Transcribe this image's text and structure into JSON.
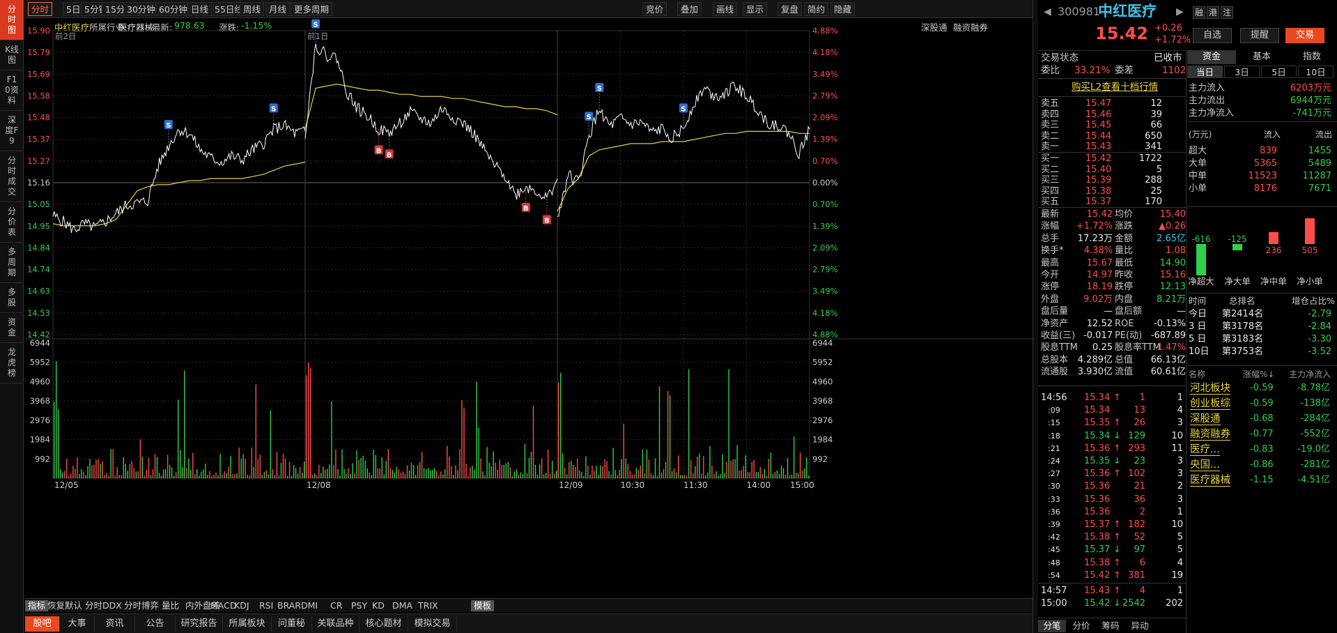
{
  "left_tabs": [
    "分时图",
    "K线图",
    "F10资料",
    "深度F9",
    "分时成交",
    "分价表",
    "多周期",
    "多股",
    "资金",
    "龙虎榜"
  ],
  "period_tabs": [
    "分时",
    "5日",
    "5分钟",
    "15分钟",
    "30分钟",
    "60分钟",
    "日线",
    "55日线",
    "周线",
    "月线",
    "更多周期"
  ],
  "right_tools": [
    "竞价",
    "叠加",
    "画线",
    "显示",
    "复盘",
    "简约",
    "隐藏"
  ],
  "info": {
    "name": "中红医疗",
    "industry_label": "所属行业:",
    "industry": "医疗器械",
    "latest_label": "最新:",
    "latest": "978.63",
    "change_label": "涨跌:",
    "change": "-1.15%",
    "tag1": "深股通",
    "tag2": "融资融券"
  },
  "chart_data": {
    "type": "line",
    "title": "",
    "price_axis": {
      "ticks": [
        "15.90",
        "15.79",
        "15.69",
        "15.58",
        "15.48",
        "15.37",
        "15.27",
        "15.16",
        "15.05",
        "14.95",
        "14.84",
        "14.74",
        "14.63",
        "14.53",
        "14.42"
      ],
      "pct": [
        "4.88%",
        "4.18%",
        "3.49%",
        "2.79%",
        "2.09%",
        "1.39%",
        "0.70%",
        "0.00%",
        "0.70%",
        "1.39%",
        "2.09%",
        "2.79%",
        "3.49%",
        "4.18%",
        "4.88%"
      ],
      "ylim": [
        14.42,
        15.9
      ],
      "prev_close": 15.16
    },
    "volume_axis": {
      "ticks": [
        "6944",
        "5952",
        "4960",
        "3968",
        "2976",
        "1984",
        "992"
      ],
      "ylim": [
        0,
        6944
      ]
    },
    "x_labels": [
      "12/05",
      "12/08",
      "12/09",
      "10:30",
      "11:30",
      "14:00",
      "15:00"
    ],
    "day_labels": [
      "前2日",
      "前1日"
    ],
    "series": [
      {
        "day": "12/05",
        "price": [
          15.0,
          14.97,
          14.93,
          14.96,
          14.94,
          14.97,
          15.01,
          15.05,
          15.06,
          15.07,
          15.24,
          15.34,
          15.42,
          15.4,
          15.32,
          15.28,
          15.26,
          15.29,
          15.27,
          15.32,
          15.35,
          15.42,
          15.44,
          15.4,
          15.41
        ],
        "avg": [
          14.96,
          14.95,
          14.95,
          14.95,
          14.95,
          14.96,
          14.98,
          15.05,
          15.12,
          15.14,
          15.15,
          15.15,
          15.16,
          15.17,
          15.17,
          15.18,
          15.18,
          15.18,
          15.18,
          15.19,
          15.2,
          15.22,
          15.24,
          15.25,
          15.26
        ]
      },
      {
        "day": "12/08",
        "price": [
          15.4,
          15.83,
          15.78,
          15.77,
          15.6,
          15.52,
          15.48,
          15.42,
          15.4,
          15.45,
          15.5,
          15.47,
          15.45,
          15.52,
          15.48,
          15.45,
          15.4,
          15.32,
          15.24,
          15.2,
          15.1,
          15.14,
          15.12,
          15.08,
          15.18
        ],
        "avg": [
          15.42,
          15.62,
          15.63,
          15.64,
          15.63,
          15.62,
          15.61,
          15.61,
          15.6,
          15.59,
          15.59,
          15.58,
          15.58,
          15.58,
          15.57,
          15.57,
          15.56,
          15.55,
          15.54,
          15.53,
          15.53,
          15.52,
          15.52,
          15.51,
          15.49
        ]
      },
      {
        "day": "12/09",
        "price": [
          14.98,
          15.2,
          15.16,
          15.38,
          15.52,
          15.43,
          15.47,
          15.44,
          15.45,
          15.4,
          15.42,
          15.38,
          15.42,
          15.55,
          15.62,
          15.58,
          15.6,
          15.63,
          15.58,
          15.52,
          15.45,
          15.44,
          15.4,
          15.3,
          15.42
        ],
        "avg": [
          15.02,
          15.13,
          15.18,
          15.29,
          15.32,
          15.33,
          15.34,
          15.35,
          15.35,
          15.35,
          15.36,
          15.36,
          15.36,
          15.37,
          15.38,
          15.39,
          15.4,
          15.4,
          15.41,
          15.41,
          15.41,
          15.41,
          15.41,
          15.4,
          15.4
        ]
      }
    ],
    "markers": [
      {
        "day": "12/05",
        "type": "S",
        "i": 11
      },
      {
        "day": "12/05",
        "type": "S",
        "i": 21
      },
      {
        "day": "12/08",
        "type": "S",
        "i": 1
      },
      {
        "day": "12/08",
        "type": "B",
        "i": 7
      },
      {
        "day": "12/08",
        "type": "B",
        "i": 8
      },
      {
        "day": "12/08",
        "type": "B",
        "i": 21
      },
      {
        "day": "12/08",
        "type": "B",
        "i": 23
      },
      {
        "day": "12/09",
        "type": "S",
        "i": 3
      },
      {
        "day": "12/09",
        "type": "S",
        "i": 4
      },
      {
        "day": "12/09",
        "type": "S",
        "i": 12
      }
    ],
    "colors": {
      "price": "#ffffff",
      "avg": "#e5d23b",
      "up": "#ff4d4d",
      "down": "#2fd04b",
      "grid": "#2a2a2a",
      "axis_up": "#ff4d4d",
      "axis_down": "#2fd04b"
    }
  },
  "bottom_tabs": [
    "指标",
    "恢复默认",
    "分时DDX",
    "分时博弈",
    "量比",
    "内外盘差",
    "MACD",
    "KDJ",
    "RSI",
    "BRAR",
    "DMI",
    "CR",
    "PSY",
    "KD",
    "DMA",
    "TRIX",
    "模板"
  ],
  "nav_tabs": [
    "股吧",
    "大事",
    "资讯",
    "公告",
    "研究报告",
    "所属板块",
    "问董秘",
    "关联品种",
    "核心题材",
    "模拟交易"
  ],
  "quote": {
    "code": "300981",
    "name": "中红医疗",
    "price": "15.42",
    "chg": "+0.26",
    "pct": "+1.72%",
    "btns": [
      "融",
      "港",
      "注"
    ],
    "zixuan": "自选",
    "tixing": "提醒",
    "jiaoyi": "交易"
  },
  "status": {
    "label": "交易状态",
    "value": "已收市",
    "weibi_label": "委比",
    "weibi": "33.21%",
    "weicha_label": "委差",
    "weicha": "1102",
    "l2": "购买L2查看十档行情"
  },
  "asks": [
    {
      "l": "卖五",
      "p": "15.47",
      "v": "12"
    },
    {
      "l": "卖四",
      "p": "15.46",
      "v": "39"
    },
    {
      "l": "卖三",
      "p": "15.45",
      "v": "66"
    },
    {
      "l": "卖二",
      "p": "15.44",
      "v": "650"
    },
    {
      "l": "卖一",
      "p": "15.43",
      "v": "341"
    }
  ],
  "bids": [
    {
      "l": "买一",
      "p": "15.42",
      "v": "1722"
    },
    {
      "l": "买二",
      "p": "15.40",
      "v": "5"
    },
    {
      "l": "买三",
      "p": "15.39",
      "v": "288"
    },
    {
      "l": "买四",
      "p": "15.38",
      "v": "25"
    },
    {
      "l": "买五",
      "p": "15.37",
      "v": "170"
    }
  ],
  "stats": [
    [
      "最新",
      "15.42",
      "均价",
      "15.40"
    ],
    [
      "涨幅",
      "+1.72%",
      "涨跌",
      "▲0.26"
    ],
    [
      "总手",
      "17.23万",
      "金额",
      "2.65亿"
    ],
    [
      "换手*",
      "4.38%",
      "量比",
      "1.08"
    ],
    [
      "最高",
      "15.67",
      "最低",
      "14.90"
    ],
    [
      "今开",
      "14.97",
      "昨收",
      "15.16"
    ],
    [
      "涨停",
      "18.19",
      "跌停",
      "12.13"
    ],
    [
      "外盘",
      "9.02万",
      "内盘",
      "8.21万"
    ],
    [
      "盘后量",
      "—",
      "盘后额",
      "—"
    ],
    [
      "净资产",
      "12.52",
      "ROE",
      "-0.13%"
    ],
    [
      "收益(三)",
      "-0.017",
      "PE(动)",
      "-687.89"
    ],
    [
      "股息TTM",
      "0.25",
      "股息率TTM",
      "1.47%"
    ],
    [
      "总股本",
      "4.289亿",
      "总值",
      "66.13亿"
    ],
    [
      "流通股",
      "3.930亿",
      "流值",
      "60.61亿"
    ]
  ],
  "ticks": [
    {
      "t": "14:56",
      "p": "15.34",
      "a": "↑",
      "v": "1",
      "n": "1"
    },
    {
      "t": ":09",
      "p": "15.34",
      "a": "",
      "v": "13",
      "n": "4"
    },
    {
      "t": ":15",
      "p": "15.35",
      "a": "↑",
      "v": "26",
      "n": "3"
    },
    {
      "t": ":18",
      "p": "15.34",
      "a": "↓",
      "v": "129",
      "n": "10"
    },
    {
      "t": ":21",
      "p": "15.36",
      "a": "↑",
      "v": "293",
      "n": "11"
    },
    {
      "t": ":24",
      "p": "15.35",
      "a": "↓",
      "v": "23",
      "n": "3"
    },
    {
      "t": ":27",
      "p": "15.36",
      "a": "↑",
      "v": "102",
      "n": "3"
    },
    {
      "t": ":30",
      "p": "15.36",
      "a": "",
      "v": "21",
      "n": "2"
    },
    {
      "t": ":33",
      "p": "15.36",
      "a": "",
      "v": "36",
      "n": "3"
    },
    {
      "t": ":36",
      "p": "15.36",
      "a": "",
      "v": "2",
      "n": "1"
    },
    {
      "t": ":39",
      "p": "15.37",
      "a": "↑",
      "v": "182",
      "n": "10"
    },
    {
      "t": ":42",
      "p": "15.38",
      "a": "↑",
      "v": "52",
      "n": "5"
    },
    {
      "t": ":45",
      "p": "15.37",
      "a": "↓",
      "v": "97",
      "n": "5"
    },
    {
      "t": ":48",
      "p": "15.38",
      "a": "↑",
      "v": "6",
      "n": "4"
    },
    {
      "t": ":54",
      "p": "15.42",
      "a": "↑",
      "v": "381",
      "n": "19"
    },
    {
      "t": "14:57",
      "p": "15.43",
      "a": "↑",
      "v": "4",
      "n": "1"
    },
    {
      "t": "15:00",
      "p": "15.42",
      "a": "↓",
      "v": "2542",
      "n": "202"
    }
  ],
  "tick_tabs": [
    "分笔",
    "分价",
    "筹码",
    "异动"
  ],
  "fund_tabs": [
    "资金",
    "基本",
    "指数"
  ],
  "fund_period": [
    "当日",
    "3日",
    "5日",
    "10日"
  ],
  "fund": [
    [
      "主力流入",
      "6203万元"
    ],
    [
      "主力流出",
      "6944万元"
    ],
    [
      "主力净流入",
      "-741万元"
    ]
  ],
  "flow_head": [
    "(万元)",
    "流入",
    "流出"
  ],
  "flows": [
    [
      "超大",
      "839",
      "1455"
    ],
    [
      "大单",
      "5365",
      "5489"
    ],
    [
      "中单",
      "11523",
      "11287"
    ],
    [
      "小单",
      "8176",
      "7671"
    ]
  ],
  "net": {
    "labels": [
      "净超大",
      "净大单",
      "净中单",
      "净小单"
    ],
    "values": [
      -616,
      -125,
      236,
      505
    ]
  },
  "rank_head": [
    "时间",
    "总排名",
    "增仓占比%"
  ],
  "ranks": [
    [
      "今日",
      "第2414名",
      "-2.79"
    ],
    [
      "3 日",
      "第3178名",
      "-2.84"
    ],
    [
      "5 日",
      "第3183名",
      "-3.30"
    ],
    [
      "10日",
      "第3753名",
      "-3.52"
    ]
  ],
  "sector_head": [
    "名称",
    "涨幅%↓",
    "主力净流入"
  ],
  "sectors": [
    [
      "河北板块",
      "-0.59",
      "-8.78亿"
    ],
    [
      "创业板综",
      "-0.59",
      "-138亿"
    ],
    [
      "深股通",
      "-0.68",
      "-284亿"
    ],
    [
      "融资融券",
      "-0.77",
      "-552亿"
    ],
    [
      "医疗...",
      "-0.83",
      "-19.0亿"
    ],
    [
      "央国...",
      "-0.86",
      "-281亿"
    ],
    [
      "医疗器械",
      "-1.15",
      "-4.51亿"
    ]
  ]
}
